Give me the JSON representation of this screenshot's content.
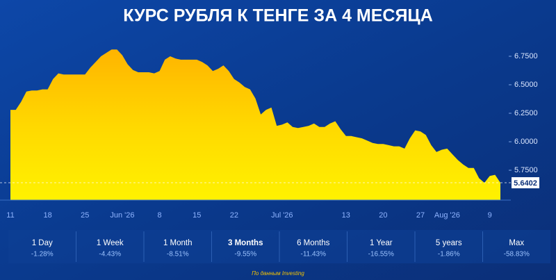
{
  "chart_data": {
    "type": "area",
    "title": "КУРС РУБЛЯ К ТЕНГЕ ЗА 4 МЕСЯЦА",
    "categories": [
      "11",
      null,
      null,
      null,
      null,
      null,
      null,
      "18",
      null,
      null,
      null,
      null,
      null,
      null,
      "25",
      null,
      null,
      null,
      null,
      null,
      null,
      "Jun '26",
      null,
      null,
      null,
      null,
      null,
      null,
      "8",
      null,
      null,
      null,
      null,
      null,
      null,
      "15",
      null,
      null,
      null,
      null,
      null,
      null,
      "22",
      null,
      null,
      null,
      null,
      null,
      null,
      null,
      null,
      "Jul '26",
      null,
      null,
      null,
      null,
      null,
      null,
      null,
      null,
      null,
      null,
      null,
      "13",
      null,
      null,
      null,
      null,
      null,
      null,
      "20",
      null,
      null,
      null,
      null,
      null,
      null,
      "27",
      null,
      null,
      null,
      null,
      "Aug '26",
      null,
      null,
      null,
      null,
      null,
      null,
      null,
      "9",
      null,
      null
    ],
    "values": [
      6.28,
      6.28,
      6.35,
      6.44,
      6.45,
      6.45,
      6.46,
      6.46,
      6.55,
      6.6,
      6.59,
      6.59,
      6.59,
      6.59,
      6.59,
      6.65,
      6.7,
      6.75,
      6.78,
      6.81,
      6.81,
      6.76,
      6.68,
      6.63,
      6.61,
      6.61,
      6.61,
      6.6,
      6.62,
      6.72,
      6.75,
      6.73,
      6.72,
      6.72,
      6.72,
      6.72,
      6.7,
      6.67,
      6.62,
      6.64,
      6.67,
      6.62,
      6.55,
      6.52,
      6.48,
      6.46,
      6.38,
      6.24,
      6.28,
      6.3,
      6.14,
      6.15,
      6.17,
      6.13,
      6.12,
      6.13,
      6.14,
      6.16,
      6.13,
      6.13,
      6.16,
      6.18,
      6.11,
      6.05,
      6.05,
      6.04,
      6.03,
      6.01,
      5.99,
      5.98,
      5.98,
      5.97,
      5.96,
      5.96,
      5.94,
      6.03,
      6.1,
      6.09,
      6.06,
      5.97,
      5.91,
      5.93,
      5.94,
      5.89,
      5.84,
      5.8,
      5.77,
      5.77,
      5.68,
      5.64,
      5.7,
      5.71,
      5.6402
    ],
    "ylim": [
      5.488,
      6.878
    ],
    "yticks": [
      {
        "value": 5.75,
        "label": "5.7500"
      },
      {
        "value": 6,
        "label": "6.0000"
      },
      {
        "value": 6.25,
        "label": "6.2500"
      },
      {
        "value": 6.5,
        "label": "6.5000"
      },
      {
        "value": 6.75,
        "label": "6.7500"
      }
    ],
    "color": "#ffd200"
  },
  "periods": [
    {
      "label": "1 Day",
      "change": "-1.28%"
    },
    {
      "label": "1 Week",
      "change": "-4.43%"
    },
    {
      "label": "1 Month",
      "change": "-8.51%"
    },
    {
      "label": "3 Months",
      "change": "-9.55%"
    },
    {
      "label": "6 Months",
      "change": "-11.43%"
    },
    {
      "label": "1 Year",
      "change": "-16.55%"
    },
    {
      "label": "5 years",
      "change": "-1.86%"
    },
    {
      "label": "Max",
      "change": "-58.83%"
    }
  ],
  "source": "По данным Investing"
}
